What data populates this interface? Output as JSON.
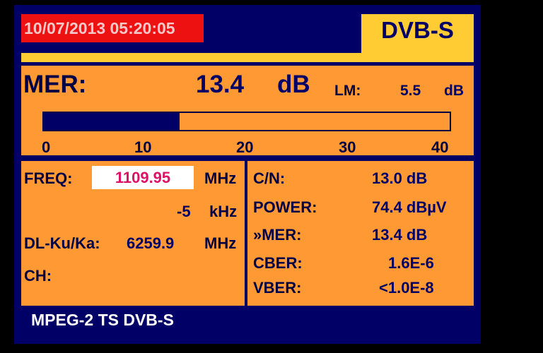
{
  "header": {
    "datetime": "10/07/2013 05:20:05",
    "mode": "DVB-S"
  },
  "mer": {
    "label": "MER:",
    "value": "13.4",
    "unit": "dB",
    "lm_label": "LM:",
    "lm_value": "5.5",
    "lm_unit": "dB",
    "bar_value": 13.4,
    "bar_max": 40,
    "scale": [
      "0",
      "10",
      "20",
      "30",
      "40"
    ]
  },
  "tuning": {
    "freq_label": "FREQ:",
    "freq_value": "1109.95",
    "freq_unit": "MHz",
    "offset_value": "-5",
    "offset_unit": "kHz",
    "dl_label": "DL-Ku/Ka:",
    "dl_value": "6259.9",
    "dl_unit": "MHz",
    "ch_label": "CH:"
  },
  "measurements": [
    {
      "label": "C/N:",
      "value": "13.0 dB"
    },
    {
      "label": "POWER:",
      "value": "74.4 dBµV"
    },
    {
      "label": "»MER:",
      "value": "13.4 dB"
    },
    {
      "label": "CBER:",
      "value": "1.6E-6"
    },
    {
      "label": "VBER:",
      "value": "<1.0E-8"
    }
  ],
  "footer": {
    "stream": "MPEG-2 TS DVB-S"
  },
  "colors": {
    "frame": "#000066",
    "panel": "#ff9933",
    "tab": "#ffcc33",
    "date_bg": "#ee1111",
    "freq": "#dd1166"
  }
}
